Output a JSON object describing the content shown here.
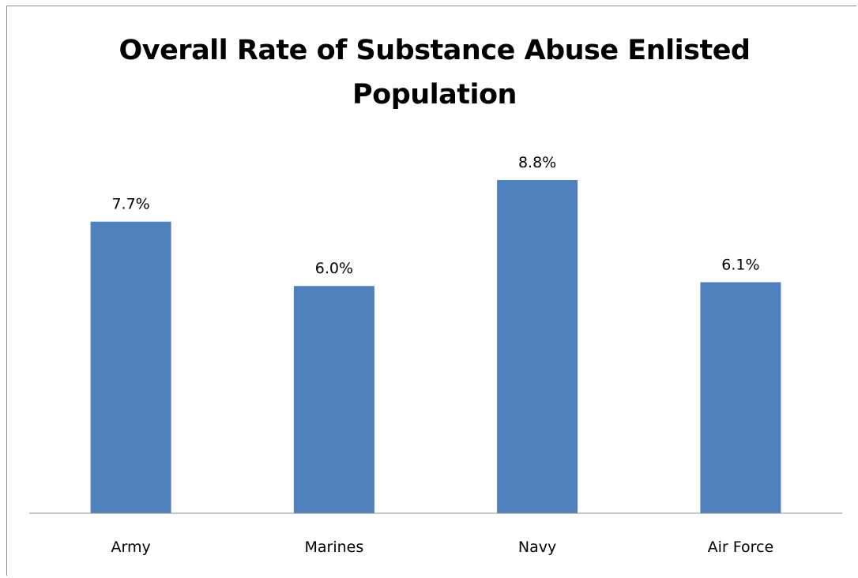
{
  "chart_data": {
    "type": "bar",
    "title": "Overall Rate of Substance Abuse Enlisted Population",
    "categories": [
      "Army",
      "Marines",
      "Navy",
      "Air Force"
    ],
    "values": [
      7.7,
      6.0,
      8.8,
      6.1
    ],
    "data_labels": [
      "7.7%",
      "6.0%",
      "8.8%",
      "6.1%"
    ],
    "unit": "%",
    "xlabel": "",
    "ylabel": "",
    "ylim": [
      0,
      10
    ],
    "grid": false,
    "legend": "none",
    "bar_color": "#4F81BD",
    "axis_color": "#8C8C8C"
  }
}
